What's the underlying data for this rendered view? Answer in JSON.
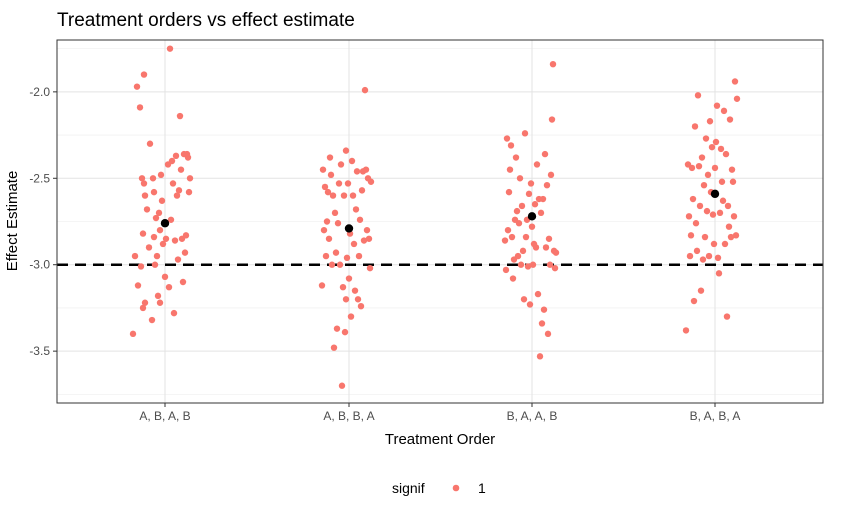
{
  "chart_data": {
    "type": "scatter",
    "title": "Treatment orders vs effect estimate",
    "xlabel": "Treatment Order",
    "ylabel": "Effect Estimate",
    "categories": [
      "A, B, A, B",
      "A, B, B, A",
      "B, A, A, B",
      "B, A, B, A"
    ],
    "ylim": [
      -3.8,
      -1.7
    ],
    "yticks": [
      -3.5,
      -3.0,
      -2.5,
      -2.0
    ],
    "ytick_labels": [
      "-3.5",
      "-3.0",
      "-2.5",
      "-2.0"
    ],
    "reference_line": {
      "y": -3.0,
      "style": "dashed",
      "color": "#000000"
    },
    "grid": true,
    "legend": {
      "title": "signif",
      "position": "bottom",
      "entries": [
        {
          "label": "1",
          "color": "#f8766d"
        }
      ]
    },
    "point_color": "#f8766d",
    "mean_color": "#000000",
    "series": [
      {
        "category": "A, B, A, B",
        "mean": -2.76,
        "points": [
          {
            "x": -0.32,
            "y": -3.4
          },
          {
            "x": -0.3,
            "y": -2.95
          },
          {
            "x": -0.28,
            "y": -1.97
          },
          {
            "x": -0.27,
            "y": -3.12
          },
          {
            "x": -0.25,
            "y": -2.09
          },
          {
            "x": -0.24,
            "y": -3.01
          },
          {
            "x": -0.23,
            "y": -2.5
          },
          {
            "x": -0.22,
            "y": -3.25
          },
          {
            "x": -0.22,
            "y": -2.82
          },
          {
            "x": -0.21,
            "y": -1.9
          },
          {
            "x": -0.21,
            "y": -2.53
          },
          {
            "x": -0.2,
            "y": -2.6
          },
          {
            "x": -0.2,
            "y": -3.22
          },
          {
            "x": -0.18,
            "y": -2.68
          },
          {
            "x": -0.16,
            "y": -2.9
          },
          {
            "x": -0.15,
            "y": -2.3
          },
          {
            "x": -0.13,
            "y": -3.32
          },
          {
            "x": -0.12,
            "y": -2.5
          },
          {
            "x": -0.11,
            "y": -2.58
          },
          {
            "x": -0.11,
            "y": -2.84
          },
          {
            "x": -0.1,
            "y": -3.0
          },
          {
            "x": -0.09,
            "y": -2.73
          },
          {
            "x": -0.08,
            "y": -2.95
          },
          {
            "x": -0.07,
            "y": -3.18
          },
          {
            "x": -0.06,
            "y": -2.7
          },
          {
            "x": -0.05,
            "y": -2.8
          },
          {
            "x": -0.05,
            "y": -3.22
          },
          {
            "x": -0.04,
            "y": -2.48
          },
          {
            "x": -0.03,
            "y": -2.63
          },
          {
            "x": -0.02,
            "y": -2.88
          },
          {
            "x": 0.0,
            "y": -3.07
          },
          {
            "x": 0.01,
            "y": -2.85
          },
          {
            "x": 0.03,
            "y": -2.42
          },
          {
            "x": 0.04,
            "y": -3.13
          },
          {
            "x": 0.05,
            "y": -1.75
          },
          {
            "x": 0.06,
            "y": -2.74
          },
          {
            "x": 0.07,
            "y": -2.4
          },
          {
            "x": 0.08,
            "y": -2.53
          },
          {
            "x": 0.09,
            "y": -3.28
          },
          {
            "x": 0.1,
            "y": -2.86
          },
          {
            "x": 0.11,
            "y": -2.37
          },
          {
            "x": 0.12,
            "y": -2.6
          },
          {
            "x": 0.13,
            "y": -2.97
          },
          {
            "x": 0.14,
            "y": -2.57
          },
          {
            "x": 0.15,
            "y": -2.14
          },
          {
            "x": 0.16,
            "y": -2.45
          },
          {
            "x": 0.17,
            "y": -2.85
          },
          {
            "x": 0.18,
            "y": -3.1
          },
          {
            "x": 0.19,
            "y": -2.36
          },
          {
            "x": 0.2,
            "y": -2.93
          },
          {
            "x": 0.21,
            "y": -2.83
          },
          {
            "x": 0.22,
            "y": -2.36
          },
          {
            "x": 0.23,
            "y": -2.38
          },
          {
            "x": 0.24,
            "y": -2.58
          },
          {
            "x": 0.25,
            "y": -2.5
          }
        ]
      },
      {
        "category": "A, B, B, A",
        "mean": -2.79,
        "points": [
          {
            "x": -0.27,
            "y": -3.12
          },
          {
            "x": -0.26,
            "y": -2.45
          },
          {
            "x": -0.25,
            "y": -2.8
          },
          {
            "x": -0.24,
            "y": -2.55
          },
          {
            "x": -0.23,
            "y": -2.95
          },
          {
            "x": -0.22,
            "y": -2.75
          },
          {
            "x": -0.21,
            "y": -2.58
          },
          {
            "x": -0.2,
            "y": -2.85
          },
          {
            "x": -0.19,
            "y": -2.38
          },
          {
            "x": -0.18,
            "y": -2.48
          },
          {
            "x": -0.17,
            "y": -3.0
          },
          {
            "x": -0.16,
            "y": -2.6
          },
          {
            "x": -0.15,
            "y": -3.48
          },
          {
            "x": -0.14,
            "y": -2.7
          },
          {
            "x": -0.13,
            "y": -2.93
          },
          {
            "x": -0.12,
            "y": -3.37
          },
          {
            "x": -0.11,
            "y": -2.76
          },
          {
            "x": -0.1,
            "y": -2.53
          },
          {
            "x": -0.09,
            "y": -3.0
          },
          {
            "x": -0.08,
            "y": -2.42
          },
          {
            "x": -0.07,
            "y": -3.7
          },
          {
            "x": -0.06,
            "y": -3.13
          },
          {
            "x": -0.05,
            "y": -2.6
          },
          {
            "x": -0.04,
            "y": -3.39
          },
          {
            "x": -0.03,
            "y": -2.34
          },
          {
            "x": -0.03,
            "y": -3.2
          },
          {
            "x": -0.02,
            "y": -2.96
          },
          {
            "x": -0.01,
            "y": -2.53
          },
          {
            "x": 0.0,
            "y": -3.08
          },
          {
            "x": 0.01,
            "y": -2.82
          },
          {
            "x": 0.02,
            "y": -3.3
          },
          {
            "x": 0.03,
            "y": -2.4
          },
          {
            "x": 0.04,
            "y": -2.6
          },
          {
            "x": 0.05,
            "y": -2.88
          },
          {
            "x": 0.06,
            "y": -3.15
          },
          {
            "x": 0.07,
            "y": -2.68
          },
          {
            "x": 0.08,
            "y": -2.46
          },
          {
            "x": 0.09,
            "y": -3.2
          },
          {
            "x": 0.1,
            "y": -2.95
          },
          {
            "x": 0.11,
            "y": -2.74
          },
          {
            "x": 0.12,
            "y": -3.24
          },
          {
            "x": 0.13,
            "y": -2.57
          },
          {
            "x": 0.14,
            "y": -2.46
          },
          {
            "x": 0.15,
            "y": -2.86
          },
          {
            "x": 0.16,
            "y": -1.99
          },
          {
            "x": 0.17,
            "y": -2.45
          },
          {
            "x": 0.18,
            "y": -2.8
          },
          {
            "x": 0.19,
            "y": -2.5
          },
          {
            "x": 0.2,
            "y": -2.85
          },
          {
            "x": 0.21,
            "y": -3.02
          },
          {
            "x": 0.22,
            "y": -2.52
          }
        ]
      },
      {
        "category": "B, A, A, B",
        "mean": -2.72,
        "points": [
          {
            "x": -0.27,
            "y": -2.86
          },
          {
            "x": -0.26,
            "y": -3.03
          },
          {
            "x": -0.25,
            "y": -2.27
          },
          {
            "x": -0.24,
            "y": -2.8
          },
          {
            "x": -0.23,
            "y": -2.58
          },
          {
            "x": -0.22,
            "y": -2.45
          },
          {
            "x": -0.21,
            "y": -2.31
          },
          {
            "x": -0.2,
            "y": -2.84
          },
          {
            "x": -0.19,
            "y": -3.08
          },
          {
            "x": -0.18,
            "y": -2.97
          },
          {
            "x": -0.17,
            "y": -2.74
          },
          {
            "x": -0.16,
            "y": -2.38
          },
          {
            "x": -0.15,
            "y": -2.69
          },
          {
            "x": -0.14,
            "y": -2.95
          },
          {
            "x": -0.13,
            "y": -2.76
          },
          {
            "x": -0.12,
            "y": -2.5
          },
          {
            "x": -0.11,
            "y": -3.0
          },
          {
            "x": -0.1,
            "y": -2.66
          },
          {
            "x": -0.09,
            "y": -2.92
          },
          {
            "x": -0.08,
            "y": -3.2
          },
          {
            "x": -0.07,
            "y": -2.24
          },
          {
            "x": -0.06,
            "y": -2.84
          },
          {
            "x": -0.05,
            "y": -2.74
          },
          {
            "x": -0.04,
            "y": -3.01
          },
          {
            "x": -0.03,
            "y": -2.59
          },
          {
            "x": -0.02,
            "y": -3.23
          },
          {
            "x": -0.01,
            "y": -2.53
          },
          {
            "x": 0.0,
            "y": -2.78
          },
          {
            "x": 0.01,
            "y": -3.0
          },
          {
            "x": 0.02,
            "y": -2.88
          },
          {
            "x": 0.03,
            "y": -2.65
          },
          {
            "x": 0.04,
            "y": -2.9
          },
          {
            "x": 0.05,
            "y": -2.42
          },
          {
            "x": 0.06,
            "y": -3.17
          },
          {
            "x": 0.07,
            "y": -2.62
          },
          {
            "x": 0.08,
            "y": -3.53
          },
          {
            "x": 0.09,
            "y": -2.7
          },
          {
            "x": 0.1,
            "y": -3.34
          },
          {
            "x": 0.11,
            "y": -2.62
          },
          {
            "x": 0.12,
            "y": -3.26
          },
          {
            "x": 0.13,
            "y": -2.36
          },
          {
            "x": 0.14,
            "y": -2.9
          },
          {
            "x": 0.15,
            "y": -2.54
          },
          {
            "x": 0.16,
            "y": -3.4
          },
          {
            "x": 0.17,
            "y": -2.85
          },
          {
            "x": 0.18,
            "y": -3.0
          },
          {
            "x": 0.19,
            "y": -2.48
          },
          {
            "x": 0.2,
            "y": -2.16
          },
          {
            "x": 0.21,
            "y": -1.84
          },
          {
            "x": 0.22,
            "y": -2.92
          },
          {
            "x": 0.23,
            "y": -3.02
          },
          {
            "x": 0.24,
            "y": -2.93
          }
        ]
      },
      {
        "category": "B, A, B, A",
        "mean": -2.59,
        "points": [
          {
            "x": -0.29,
            "y": -3.38
          },
          {
            "x": -0.27,
            "y": -2.42
          },
          {
            "x": -0.26,
            "y": -2.72
          },
          {
            "x": -0.25,
            "y": -2.95
          },
          {
            "x": -0.24,
            "y": -2.83
          },
          {
            "x": -0.23,
            "y": -2.44
          },
          {
            "x": -0.22,
            "y": -2.62
          },
          {
            "x": -0.21,
            "y": -3.21
          },
          {
            "x": -0.2,
            "y": -2.2
          },
          {
            "x": -0.19,
            "y": -2.76
          },
          {
            "x": -0.18,
            "y": -2.92
          },
          {
            "x": -0.17,
            "y": -2.02
          },
          {
            "x": -0.16,
            "y": -2.43
          },
          {
            "x": -0.15,
            "y": -2.66
          },
          {
            "x": -0.14,
            "y": -3.15
          },
          {
            "x": -0.13,
            "y": -2.38
          },
          {
            "x": -0.12,
            "y": -2.97
          },
          {
            "x": -0.11,
            "y": -2.54
          },
          {
            "x": -0.1,
            "y": -2.84
          },
          {
            "x": -0.09,
            "y": -2.27
          },
          {
            "x": -0.08,
            "y": -2.69
          },
          {
            "x": -0.07,
            "y": -2.48
          },
          {
            "x": -0.06,
            "y": -2.95
          },
          {
            "x": -0.05,
            "y": -2.17
          },
          {
            "x": -0.04,
            "y": -2.58
          },
          {
            "x": -0.03,
            "y": -2.32
          },
          {
            "x": -0.02,
            "y": -2.71
          },
          {
            "x": -0.01,
            "y": -2.88
          },
          {
            "x": 0.0,
            "y": -2.44
          },
          {
            "x": 0.01,
            "y": -2.29
          },
          {
            "x": 0.02,
            "y": -2.08
          },
          {
            "x": 0.03,
            "y": -2.96
          },
          {
            "x": 0.04,
            "y": -3.05
          },
          {
            "x": 0.05,
            "y": -2.7
          },
          {
            "x": 0.06,
            "y": -2.33
          },
          {
            "x": 0.07,
            "y": -2.52
          },
          {
            "x": 0.08,
            "y": -2.63
          },
          {
            "x": 0.09,
            "y": -2.11
          },
          {
            "x": 0.1,
            "y": -2.88
          },
          {
            "x": 0.11,
            "y": -2.36
          },
          {
            "x": 0.12,
            "y": -3.3
          },
          {
            "x": 0.13,
            "y": -2.66
          },
          {
            "x": 0.14,
            "y": -2.78
          },
          {
            "x": 0.15,
            "y": -2.16
          },
          {
            "x": 0.16,
            "y": -2.84
          },
          {
            "x": 0.17,
            "y": -2.45
          },
          {
            "x": 0.18,
            "y": -2.52
          },
          {
            "x": 0.19,
            "y": -2.72
          },
          {
            "x": 0.2,
            "y": -1.94
          },
          {
            "x": 0.21,
            "y": -2.83
          },
          {
            "x": 0.22,
            "y": -2.04
          }
        ]
      }
    ]
  }
}
